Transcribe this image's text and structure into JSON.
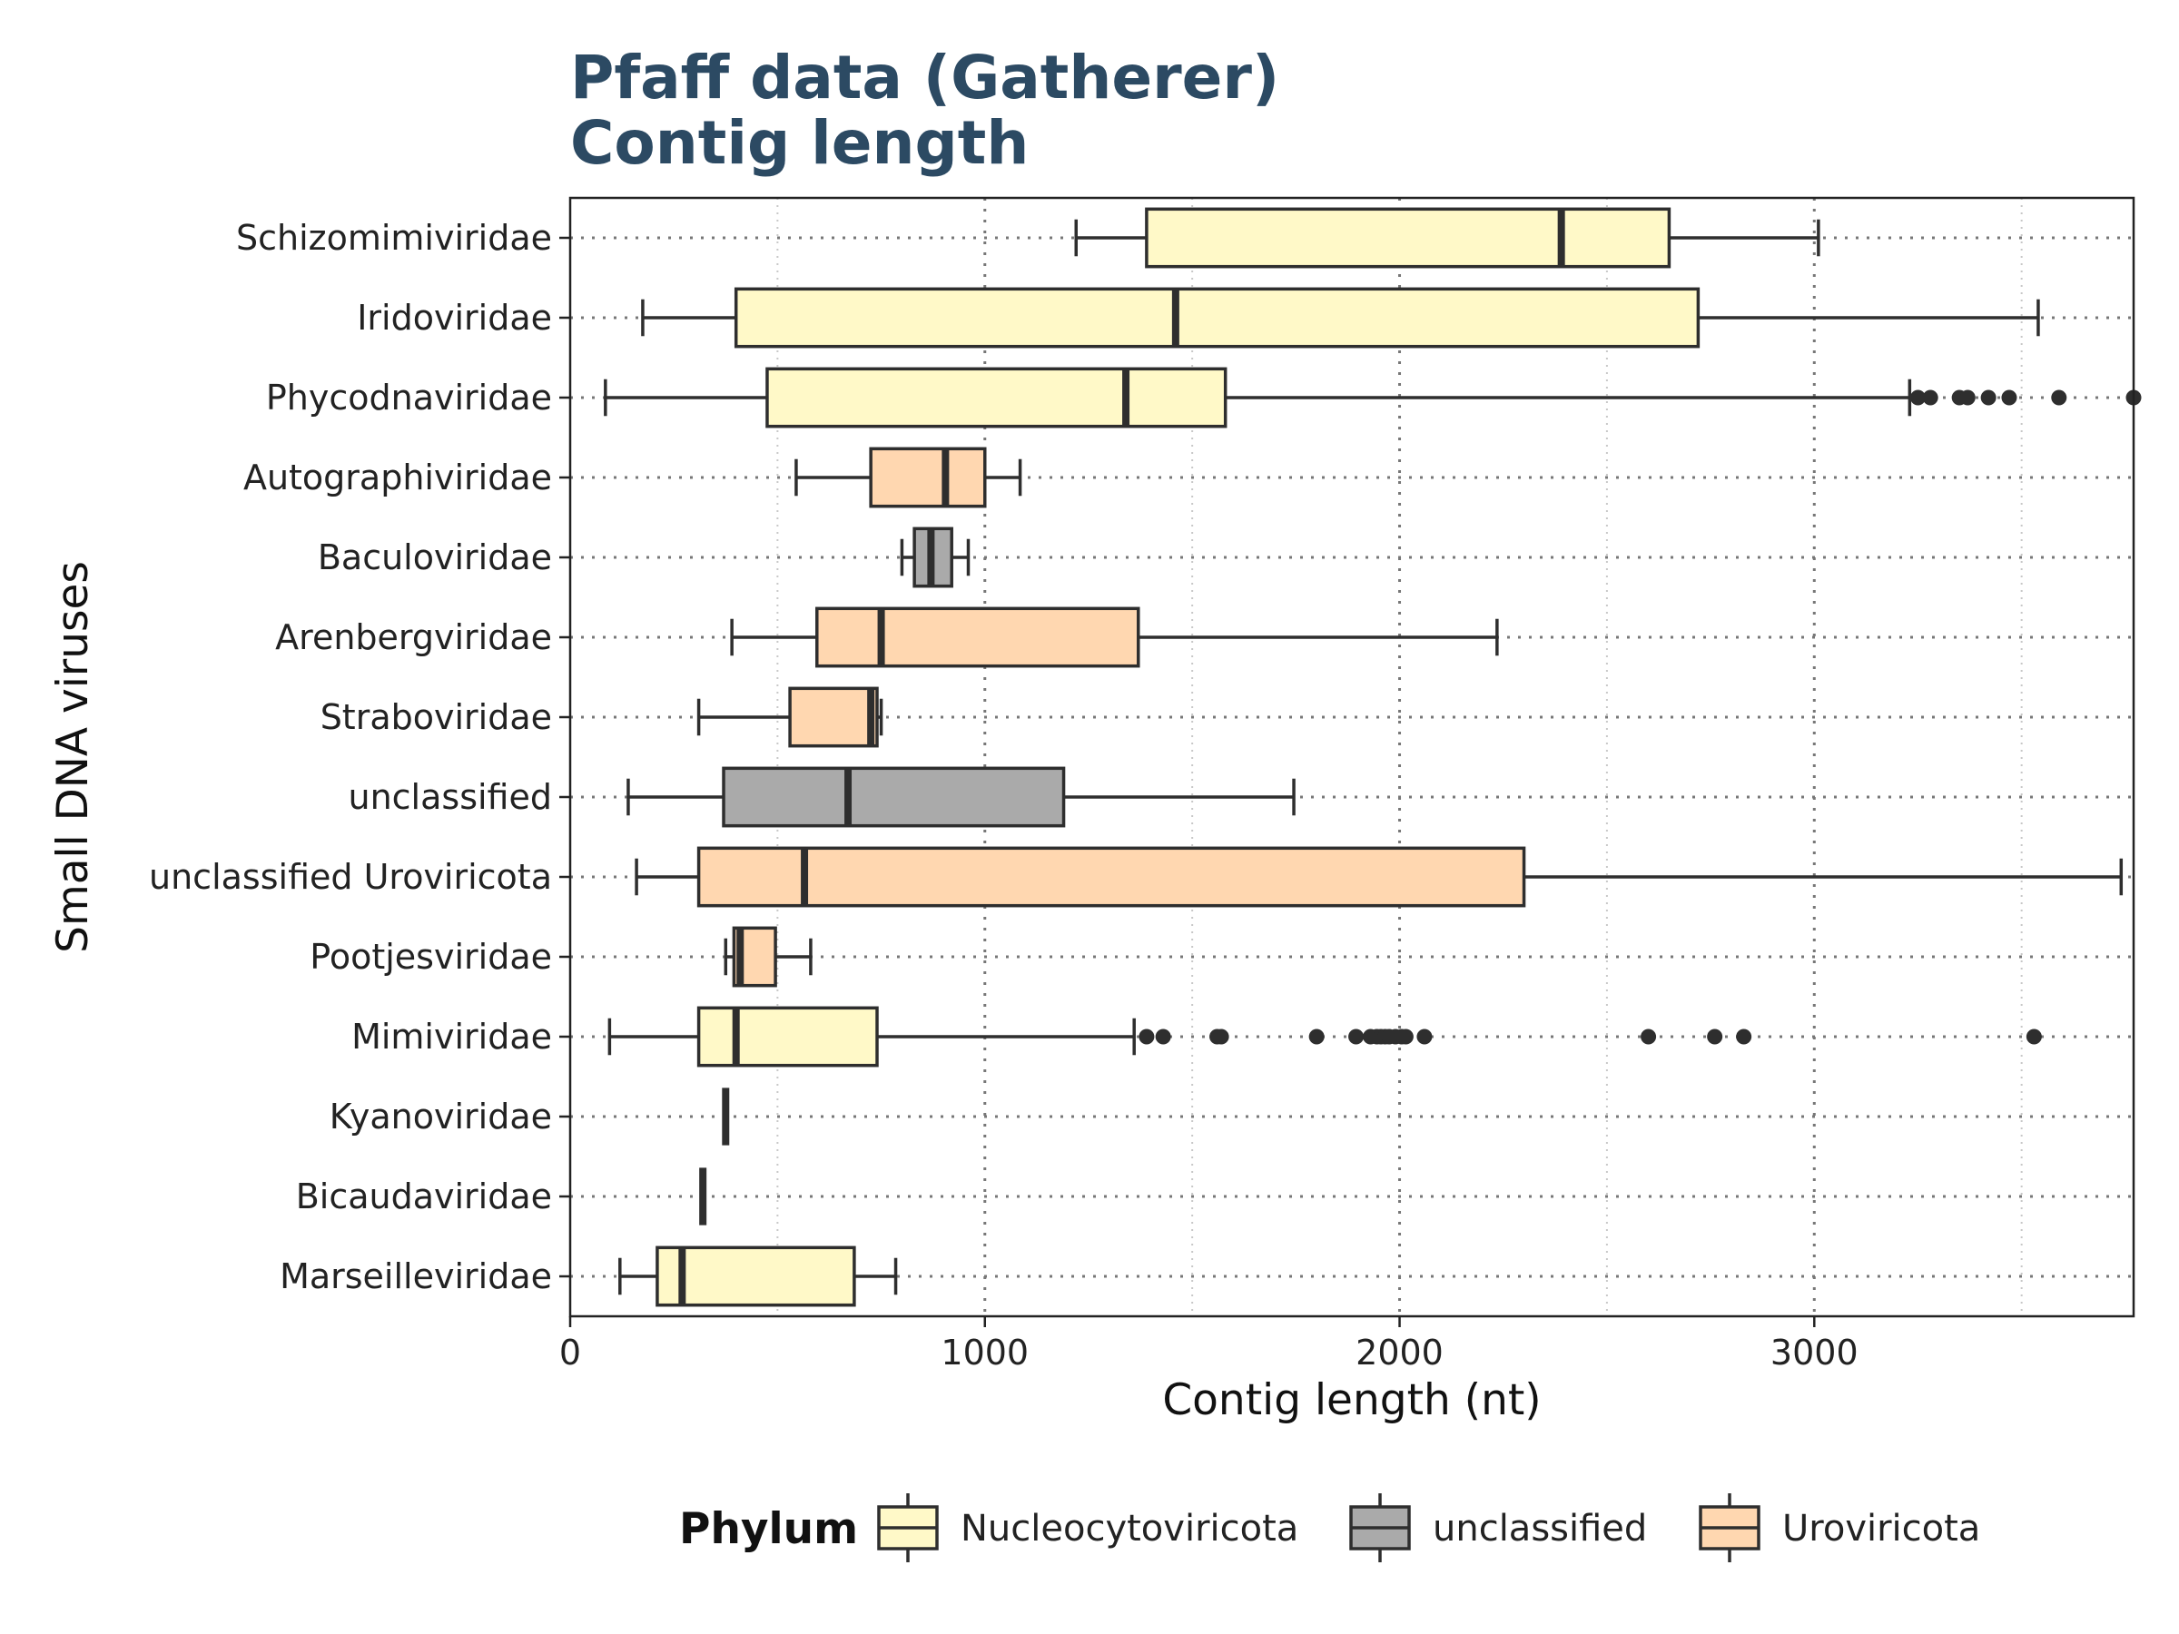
{
  "title_lines": [
    "Pfaff data (Gatherer)",
    "Contig length"
  ],
  "chart_data": {
    "type": "boxplot",
    "orientation": "horizontal",
    "title": "Pfaff data (Gatherer)\nContig length",
    "xlabel": "Contig length (nt)",
    "ylabel": "Small DNA viruses",
    "xlim": [
      0,
      3770
    ],
    "xticks": [
      0,
      1000,
      2000,
      3000
    ],
    "grid": true,
    "legend": {
      "title": "Phylum",
      "position": "bottom",
      "entries": [
        {
          "name": "Nucleocytoviricota",
          "color": "#fff9c8"
        },
        {
          "name": "unclassified",
          "color": "#aaaaaa"
        },
        {
          "name": "Uroviricota",
          "color": "#ffd7b0"
        }
      ]
    },
    "series": [
      {
        "category": "Schizomimiviridae",
        "phylum": "Nucleocytoviricota",
        "whisker_low": 1220,
        "q1": 1390,
        "median": 2390,
        "q3": 2650,
        "whisker_high": 3010,
        "outliers": []
      },
      {
        "category": "Iridoviridae",
        "phylum": "Nucleocytoviricota",
        "whisker_low": 175,
        "q1": 400,
        "median": 1460,
        "q3": 2720,
        "whisker_high": 3540,
        "outliers": []
      },
      {
        "category": "Phycodnaviridae",
        "phylum": "Nucleocytoviricota",
        "whisker_low": 85,
        "q1": 475,
        "median": 1340,
        "q3": 1580,
        "whisker_high": 3230,
        "outliers": [
          3250,
          3280,
          3350,
          3370,
          3420,
          3470,
          3590,
          3770
        ]
      },
      {
        "category": "Autographiviridae",
        "phylum": "Uroviricota",
        "whisker_low": 545,
        "q1": 725,
        "median": 905,
        "q3": 1000,
        "whisker_high": 1085,
        "outliers": []
      },
      {
        "category": "Baculoviridae",
        "phylum": "unclassified",
        "whisker_low": 800,
        "q1": 830,
        "median": 870,
        "q3": 920,
        "whisker_high": 960,
        "outliers": []
      },
      {
        "category": "Arenbergviridae",
        "phylum": "Uroviricota",
        "whisker_low": 390,
        "q1": 595,
        "median": 750,
        "q3": 1370,
        "whisker_high": 2235,
        "outliers": []
      },
      {
        "category": "Straboviridae",
        "phylum": "Uroviricota",
        "whisker_low": 310,
        "q1": 530,
        "median": 725,
        "q3": 740,
        "whisker_high": 750,
        "outliers": []
      },
      {
        "category": "unclassified",
        "phylum": "unclassified",
        "whisker_low": 140,
        "q1": 370,
        "median": 670,
        "q3": 1190,
        "whisker_high": 1745,
        "outliers": []
      },
      {
        "category": "unclassified Uroviricota",
        "phylum": "Uroviricota",
        "whisker_low": 160,
        "q1": 310,
        "median": 565,
        "q3": 2300,
        "whisker_high": 3740,
        "outliers": []
      },
      {
        "category": "Pootjesviridae",
        "phylum": "Uroviricota",
        "whisker_low": 375,
        "q1": 395,
        "median": 410,
        "q3": 495,
        "whisker_high": 580,
        "outliers": []
      },
      {
        "category": "Mimiviridae",
        "phylum": "Nucleocytoviricota",
        "whisker_low": 95,
        "q1": 310,
        "median": 400,
        "q3": 740,
        "whisker_high": 1360,
        "outliers": [
          1390,
          1430,
          1560,
          1570,
          1800,
          1895,
          1930,
          1945,
          1955,
          1965,
          1975,
          1990,
          2005,
          2015,
          2060,
          2600,
          2760,
          2830,
          3530
        ]
      },
      {
        "category": "Kyanoviridae",
        "phylum": "Uroviricota",
        "whisker_low": 375,
        "q1": 375,
        "median": 375,
        "q3": 375,
        "whisker_high": 375,
        "outliers": []
      },
      {
        "category": "Bicaudaviridae",
        "phylum": "unclassified",
        "whisker_low": 320,
        "q1": 320,
        "median": 320,
        "q3": 320,
        "whisker_high": 320,
        "outliers": []
      },
      {
        "category": "Marseilleviridae",
        "phylum": "Nucleocytoviricota",
        "whisker_low": 120,
        "q1": 210,
        "median": 270,
        "q3": 685,
        "whisker_high": 785,
        "outliers": []
      }
    ]
  }
}
